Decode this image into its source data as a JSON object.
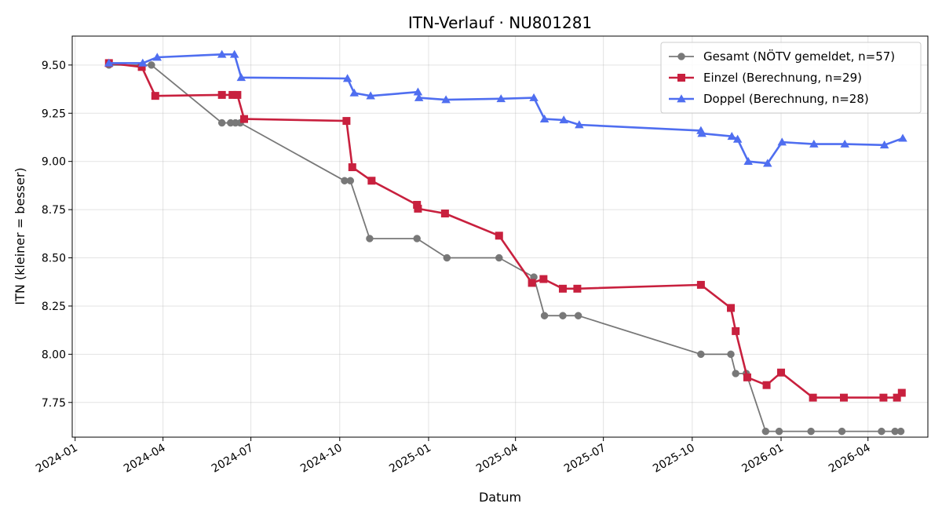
{
  "chart_data": {
    "type": "line",
    "title": "ITN-Verlauf · NU801281",
    "xlabel": "Datum",
    "ylabel": "ITN  (kleiner = besser)",
    "ylim": [
      7.57,
      9.65
    ],
    "xlim": [
      "2023-12-29",
      "2026-06-02"
    ],
    "yticks": [
      7.75,
      8.0,
      8.25,
      8.5,
      8.75,
      9.0,
      9.25,
      9.5
    ],
    "ytick_labels": [
      "7.75",
      "8.00",
      "8.25",
      "8.50",
      "8.75",
      "9.00",
      "9.25",
      "9.50"
    ],
    "xticks": [
      "2024-01-01",
      "2024-04-01",
      "2024-07-01",
      "2024-10-01",
      "2025-01-01",
      "2025-04-01",
      "2025-07-01",
      "2025-10-01",
      "2026-01-01",
      "2026-04-01"
    ],
    "xtick_labels": [
      "2024-01",
      "2024-04",
      "2024-07",
      "2024-10",
      "2025-01",
      "2025-04",
      "2025-07",
      "2025-10",
      "2026-01",
      "2026-04"
    ],
    "grid": true,
    "legend_position": "top-right",
    "series": [
      {
        "name": "Gesamt (NÖTV gemeldet, n=57)",
        "color": "#404040",
        "marker": "circle",
        "points": [
          {
            "x": "2024-02-05",
            "y": 9.5
          },
          {
            "x": "2024-03-20",
            "y": 9.5
          },
          {
            "x": "2024-06-01",
            "y": 9.2
          },
          {
            "x": "2024-06-10",
            "y": 9.2
          },
          {
            "x": "2024-06-15",
            "y": 9.2
          },
          {
            "x": "2024-06-20",
            "y": 9.2
          },
          {
            "x": "2024-10-06",
            "y": 8.9
          },
          {
            "x": "2024-10-12",
            "y": 8.9
          },
          {
            "x": "2024-11-01",
            "y": 8.6
          },
          {
            "x": "2024-12-20",
            "y": 8.6
          },
          {
            "x": "2025-01-20",
            "y": 8.5
          },
          {
            "x": "2025-03-15",
            "y": 8.5
          },
          {
            "x": "2025-04-20",
            "y": 8.4
          },
          {
            "x": "2025-05-01",
            "y": 8.2
          },
          {
            "x": "2025-05-20",
            "y": 8.2
          },
          {
            "x": "2025-06-05",
            "y": 8.2
          },
          {
            "x": "2025-10-10",
            "y": 8.0
          },
          {
            "x": "2025-11-10",
            "y": 8.0
          },
          {
            "x": "2025-11-15",
            "y": 7.9
          },
          {
            "x": "2025-11-26",
            "y": 7.9
          },
          {
            "x": "2025-12-16",
            "y": 7.6
          },
          {
            "x": "2025-12-30",
            "y": 7.6
          },
          {
            "x": "2026-02-01",
            "y": 7.6
          },
          {
            "x": "2026-03-05",
            "y": 7.6
          },
          {
            "x": "2026-04-15",
            "y": 7.6
          },
          {
            "x": "2026-04-29",
            "y": 7.6
          },
          {
            "x": "2026-05-05",
            "y": 7.6
          }
        ]
      },
      {
        "name": "Einzel (Berechnung, n=29)",
        "color": "#c8203e",
        "marker": "square",
        "points": [
          {
            "x": "2024-02-05",
            "y": 9.51
          },
          {
            "x": "2024-03-10",
            "y": 9.49
          },
          {
            "x": "2024-03-24",
            "y": 9.34
          },
          {
            "x": "2024-06-01",
            "y": 9.345
          },
          {
            "x": "2024-06-12",
            "y": 9.345
          },
          {
            "x": "2024-06-17",
            "y": 9.345
          },
          {
            "x": "2024-06-24",
            "y": 9.22
          },
          {
            "x": "2024-10-08",
            "y": 9.21
          },
          {
            "x": "2024-10-14",
            "y": 8.97
          },
          {
            "x": "2024-11-03",
            "y": 8.9
          },
          {
            "x": "2024-12-20",
            "y": 8.775
          },
          {
            "x": "2024-12-21",
            "y": 8.755
          },
          {
            "x": "2025-01-18",
            "y": 8.73
          },
          {
            "x": "2025-03-15",
            "y": 8.615
          },
          {
            "x": "2025-04-18",
            "y": 8.37
          },
          {
            "x": "2025-04-30",
            "y": 8.39
          },
          {
            "x": "2025-05-20",
            "y": 8.34
          },
          {
            "x": "2025-06-04",
            "y": 8.34
          },
          {
            "x": "2025-10-10",
            "y": 8.36
          },
          {
            "x": "2025-11-10",
            "y": 8.24
          },
          {
            "x": "2025-11-15",
            "y": 8.12
          },
          {
            "x": "2025-11-27",
            "y": 7.88
          },
          {
            "x": "2025-12-17",
            "y": 7.84
          },
          {
            "x": "2026-01-01",
            "y": 7.905
          },
          {
            "x": "2026-02-03",
            "y": 7.775
          },
          {
            "x": "2026-03-07",
            "y": 7.775
          },
          {
            "x": "2026-04-17",
            "y": 7.775
          },
          {
            "x": "2026-05-01",
            "y": 7.775
          },
          {
            "x": "2026-05-06",
            "y": 7.8
          }
        ]
      },
      {
        "name": "Doppel (Berechnung, n=28)",
        "color": "#4f6ef0",
        "marker": "triangle",
        "points": [
          {
            "x": "2024-02-05",
            "y": 9.51
          },
          {
            "x": "2024-03-11",
            "y": 9.51
          },
          {
            "x": "2024-03-26",
            "y": 9.54
          },
          {
            "x": "2024-06-01",
            "y": 9.555
          },
          {
            "x": "2024-06-14",
            "y": 9.555
          },
          {
            "x": "2024-06-21",
            "y": 9.435
          },
          {
            "x": "2024-10-09",
            "y": 9.43
          },
          {
            "x": "2024-10-16",
            "y": 9.355
          },
          {
            "x": "2024-11-02",
            "y": 9.34
          },
          {
            "x": "2024-12-21",
            "y": 9.36
          },
          {
            "x": "2024-12-22",
            "y": 9.33
          },
          {
            "x": "2025-01-19",
            "y": 9.32
          },
          {
            "x": "2025-03-17",
            "y": 9.325
          },
          {
            "x": "2025-04-20",
            "y": 9.33
          },
          {
            "x": "2025-05-01",
            "y": 9.22
          },
          {
            "x": "2025-05-21",
            "y": 9.215
          },
          {
            "x": "2025-06-06",
            "y": 9.19
          },
          {
            "x": "2025-10-10",
            "y": 9.16
          },
          {
            "x": "2025-10-11",
            "y": 9.145
          },
          {
            "x": "2025-11-11",
            "y": 9.13
          },
          {
            "x": "2025-11-17",
            "y": 9.115
          },
          {
            "x": "2025-11-28",
            "y": 9.0
          },
          {
            "x": "2025-12-18",
            "y": 8.99
          },
          {
            "x": "2026-01-02",
            "y": 9.1
          },
          {
            "x": "2026-02-04",
            "y": 9.09
          },
          {
            "x": "2026-03-08",
            "y": 9.09
          },
          {
            "x": "2026-04-18",
            "y": 9.085
          },
          {
            "x": "2026-05-07",
            "y": 9.12
          }
        ]
      }
    ]
  }
}
